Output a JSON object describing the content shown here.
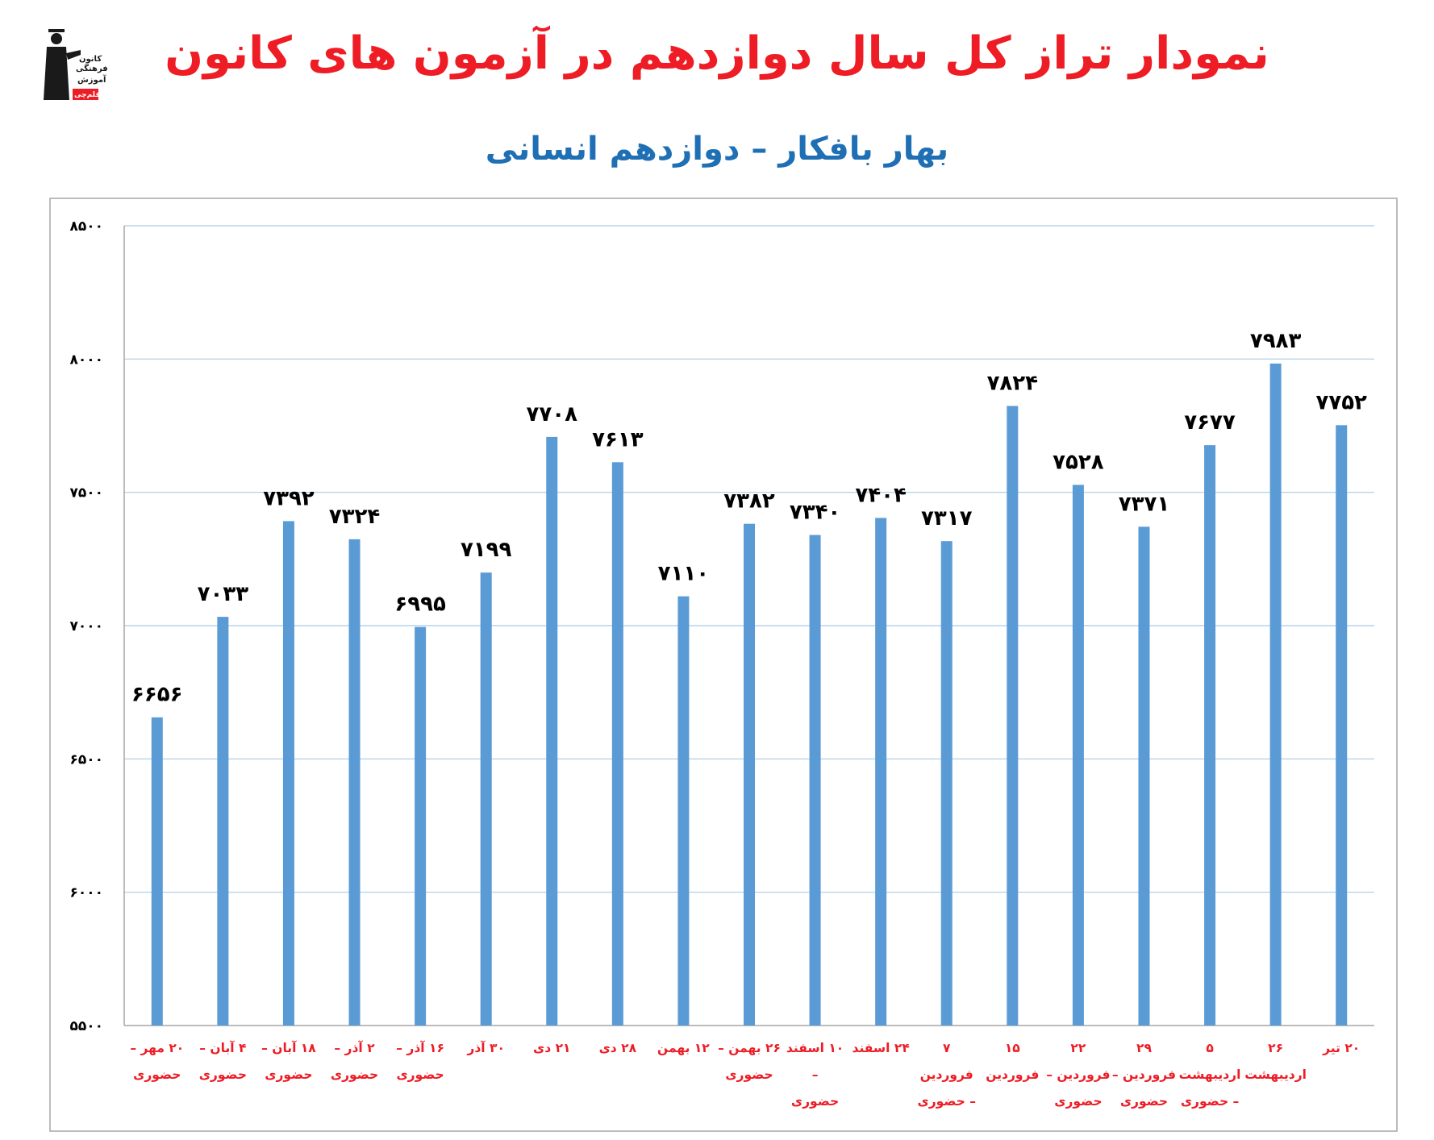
{
  "title": "نمودار تراز کل سال دوازدهم در آزمون های کانون",
  "subtitle": "بهار بافکار – دوازدهم انسانی",
  "logo": {
    "text_lines": [
      "کانون",
      "فرهنگی",
      "آموزش",
      "قلم‌چی"
    ],
    "colors": {
      "figure": "#1a1a1a",
      "badge": "#ee1c25"
    }
  },
  "colors": {
    "title": "#ee1c25",
    "subtitle": "#1f6fb5",
    "bar": "#5b9bd5",
    "gridline": "#a8cbe6",
    "xlabel": "#ee1c25"
  },
  "chart_data": {
    "type": "bar",
    "title": "",
    "xlabel": "",
    "ylabel": "",
    "ylim": [
      5500,
      8500
    ],
    "y_ticks": [
      5500,
      6000,
      6500,
      7000,
      7500,
      8000,
      8500
    ],
    "y_tick_labels": [
      "۵۵۰۰",
      "۶۰۰۰",
      "۶۵۰۰",
      "۷۰۰۰",
      "۷۵۰۰",
      "۸۰۰۰",
      "۸۵۰۰"
    ],
    "grid": true,
    "legend": "none",
    "categories": [
      [
        "۲۰ مهر –",
        "حضوری"
      ],
      [
        "۴ آبان –",
        "حضوری"
      ],
      [
        "۱۸ آبان –",
        "حضوری"
      ],
      [
        "۲ آذر –",
        "حضوری"
      ],
      [
        "۱۶ آذر –",
        "حضوری"
      ],
      [
        "۳۰ آذر"
      ],
      [
        "۲۱ دی"
      ],
      [
        "۲۸ دی"
      ],
      [
        "۱۲ بهمن"
      ],
      [
        "۲۶ بهمن –",
        "حضوری"
      ],
      [
        "۱۰ اسفند –",
        "حضوری"
      ],
      [
        "۲۴ اسفند"
      ],
      [
        "۷ فروردین",
        "– حضوری"
      ],
      [
        "۱۵ فروردین"
      ],
      [
        "۲۲",
        "فروردین –",
        "حضوری"
      ],
      [
        "۲۹",
        "فروردین –",
        "حضوری"
      ],
      [
        "۵ اردیبهشت",
        "– حضوری"
      ],
      [
        "۲۶",
        "اردیبهشت"
      ],
      [
        "۲۰ تیر"
      ]
    ],
    "values": [
      6656,
      7033,
      7392,
      7324,
      6995,
      7199,
      7708,
      7613,
      7110,
      7382,
      7340,
      7404,
      7317,
      7824,
      7528,
      7371,
      7677,
      7983,
      7752
    ],
    "value_labels": [
      "۶۶۵۶",
      "۷۰۳۳",
      "۷۳۹۲",
      "۷۳۲۴",
      "۶۹۹۵",
      "۷۱۹۹",
      "۷۷۰۸",
      "۷۶۱۳",
      "۷۱۱۰",
      "۷۳۸۲",
      "۷۳۴۰",
      "۷۴۰۴",
      "۷۳۱۷",
      "۷۸۲۴",
      "۷۵۲۸",
      "۷۳۷۱",
      "۷۶۷۷",
      "۷۹۸۳",
      "۷۷۵۲"
    ]
  }
}
